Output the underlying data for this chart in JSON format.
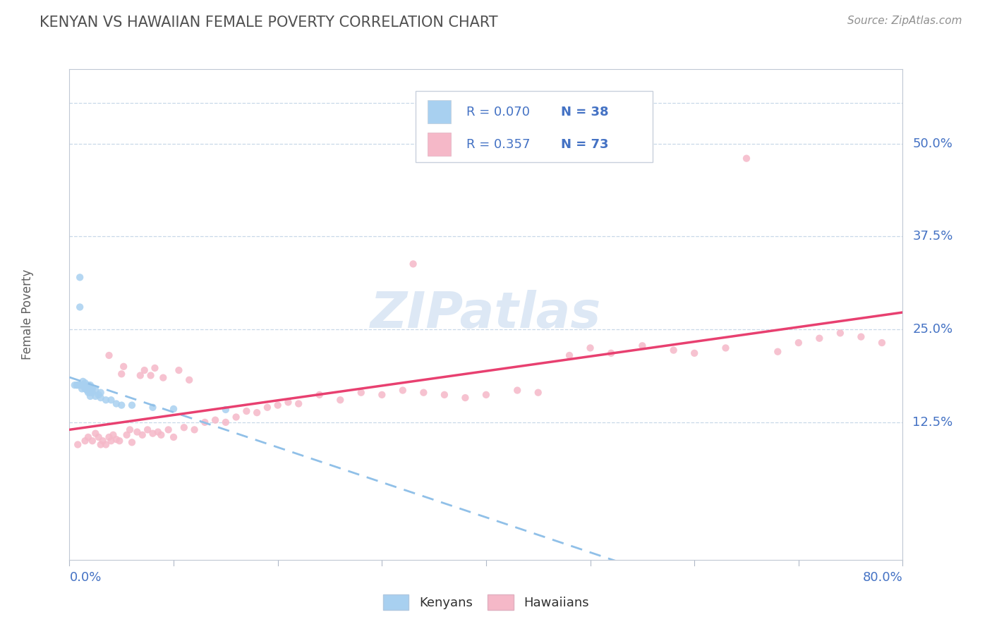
{
  "title": "KENYAN VS HAWAIIAN FEMALE POVERTY CORRELATION CHART",
  "source": "Source: ZipAtlas.com",
  "ylabel": "Female Poverty",
  "ytick_labels": [
    "12.5%",
    "25.0%",
    "37.5%",
    "50.0%"
  ],
  "ytick_values": [
    0.125,
    0.25,
    0.375,
    0.5
  ],
  "xlim": [
    0.0,
    0.8
  ],
  "ylim": [
    -0.06,
    0.6
  ],
  "kenyan_R": 0.07,
  "kenyan_N": 38,
  "hawaiian_R": 0.357,
  "hawaiian_N": 73,
  "kenyan_color": "#a8d0f0",
  "hawaiian_color": "#f5b8c8",
  "kenyan_line_color": "#90c0e8",
  "hawaiian_line_color": "#e84070",
  "legend_text_color": "#4472c4",
  "axis_label_color": "#4472c4",
  "title_color": "#505050",
  "watermark_color": "#dde8f5",
  "grid_color": "#c8d8e8",
  "kenyan_x": [
    0.005,
    0.007,
    0.008,
    0.01,
    0.01,
    0.01,
    0.012,
    0.012,
    0.013,
    0.013,
    0.015,
    0.015,
    0.015,
    0.015,
    0.017,
    0.017,
    0.018,
    0.018,
    0.018,
    0.02,
    0.02,
    0.02,
    0.02,
    0.022,
    0.022,
    0.025,
    0.025,
    0.028,
    0.03,
    0.03,
    0.035,
    0.04,
    0.045,
    0.05,
    0.06,
    0.08,
    0.1,
    0.15
  ],
  "kenyan_y": [
    0.175,
    0.175,
    0.175,
    0.175,
    0.28,
    0.32,
    0.17,
    0.175,
    0.175,
    0.18,
    0.17,
    0.172,
    0.175,
    0.178,
    0.168,
    0.172,
    0.165,
    0.17,
    0.175,
    0.16,
    0.165,
    0.17,
    0.175,
    0.165,
    0.17,
    0.16,
    0.168,
    0.162,
    0.158,
    0.165,
    0.155,
    0.155,
    0.15,
    0.148,
    0.148,
    0.145,
    0.143,
    0.142
  ],
  "hawaiian_x": [
    0.008,
    0.015,
    0.018,
    0.022,
    0.025,
    0.028,
    0.03,
    0.032,
    0.035,
    0.038,
    0.038,
    0.04,
    0.042,
    0.045,
    0.048,
    0.05,
    0.052,
    0.055,
    0.058,
    0.06,
    0.065,
    0.068,
    0.07,
    0.072,
    0.075,
    0.078,
    0.08,
    0.082,
    0.085,
    0.088,
    0.09,
    0.095,
    0.1,
    0.105,
    0.11,
    0.115,
    0.12,
    0.13,
    0.14,
    0.15,
    0.16,
    0.17,
    0.18,
    0.19,
    0.2,
    0.21,
    0.22,
    0.24,
    0.26,
    0.28,
    0.3,
    0.32,
    0.34,
    0.36,
    0.38,
    0.4,
    0.43,
    0.45,
    0.48,
    0.5,
    0.52,
    0.55,
    0.58,
    0.6,
    0.63,
    0.65,
    0.68,
    0.7,
    0.72,
    0.74,
    0.76,
    0.78,
    0.33
  ],
  "hawaiian_y": [
    0.095,
    0.1,
    0.105,
    0.1,
    0.11,
    0.105,
    0.095,
    0.1,
    0.095,
    0.105,
    0.215,
    0.1,
    0.108,
    0.102,
    0.1,
    0.19,
    0.2,
    0.108,
    0.115,
    0.098,
    0.112,
    0.188,
    0.108,
    0.195,
    0.115,
    0.188,
    0.11,
    0.198,
    0.112,
    0.108,
    0.185,
    0.115,
    0.105,
    0.195,
    0.118,
    0.182,
    0.115,
    0.125,
    0.128,
    0.125,
    0.132,
    0.14,
    0.138,
    0.145,
    0.148,
    0.152,
    0.15,
    0.162,
    0.155,
    0.165,
    0.162,
    0.168,
    0.165,
    0.162,
    0.158,
    0.162,
    0.168,
    0.165,
    0.215,
    0.225,
    0.218,
    0.228,
    0.222,
    0.218,
    0.225,
    0.48,
    0.22,
    0.232,
    0.238,
    0.245,
    0.24,
    0.232,
    0.338
  ]
}
